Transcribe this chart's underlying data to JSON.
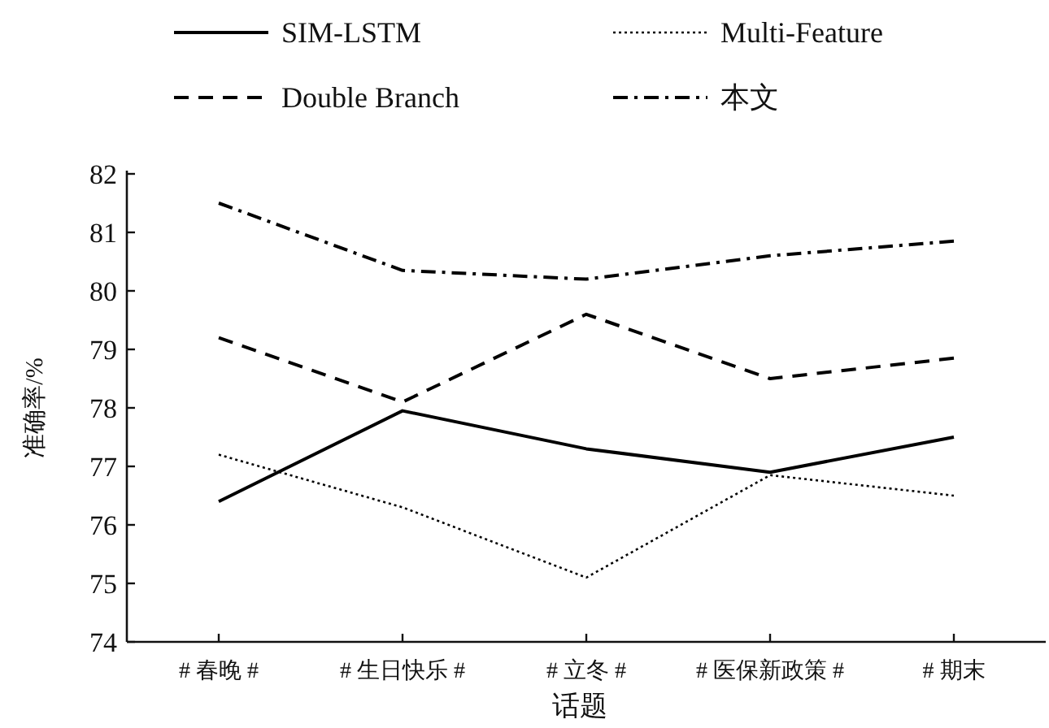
{
  "chart_data": {
    "type": "line",
    "xlabel": "话题",
    "ylabel": "准确率/%",
    "categories": [
      "# 春晚 #",
      "# 生日快乐 #",
      "# 立冬 #",
      "# 医保新政策 #",
      "# 期末"
    ],
    "series": [
      {
        "name": "SIM-LSTM",
        "color": "#000000",
        "line_style": "solid",
        "values": [
          76.4,
          77.95,
          77.3,
          76.9,
          77.5
        ]
      },
      {
        "name": "Multi-Feature",
        "color": "#000000",
        "line_style": "dotted",
        "values": [
          77.2,
          76.3,
          75.1,
          76.85,
          76.5
        ]
      },
      {
        "name": "Double Branch",
        "color": "#000000",
        "line_style": "dashed",
        "values": [
          79.2,
          78.1,
          79.6,
          78.5,
          78.85
        ]
      },
      {
        "name": "本文",
        "color": "#000000",
        "line_style": "dashdot",
        "values": [
          81.5,
          80.35,
          80.2,
          80.6,
          80.85
        ]
      }
    ],
    "ylim": [
      74,
      82
    ],
    "yticks": [
      74,
      75,
      76,
      77,
      78,
      79,
      80,
      81,
      82
    ],
    "legend": "top"
  }
}
